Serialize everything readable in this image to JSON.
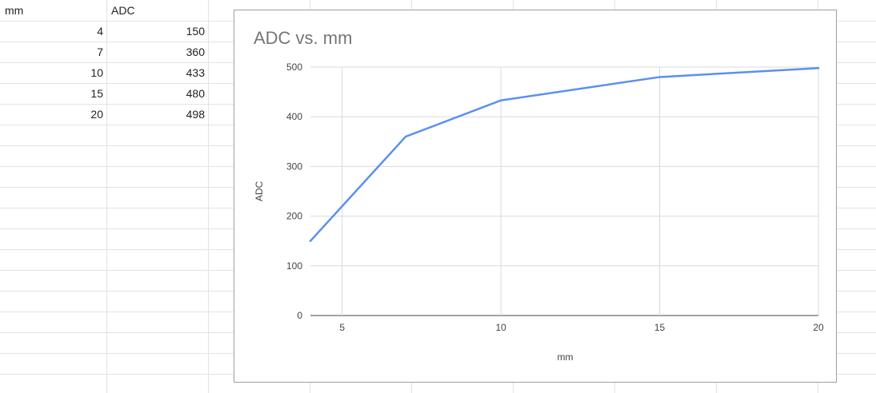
{
  "sheet": {
    "headers": [
      "mm",
      "ADC"
    ],
    "rows": [
      [
        "4",
        "150"
      ],
      [
        "7",
        "360"
      ],
      [
        "10",
        "433"
      ],
      [
        "15",
        "480"
      ],
      [
        "20",
        "498"
      ]
    ]
  },
  "chart_data": {
    "type": "line",
    "title": "ADC vs. mm",
    "xlabel": "mm",
    "ylabel": "ADC",
    "x": [
      4,
      7,
      10,
      15,
      20
    ],
    "series": [
      {
        "values": [
          150,
          360,
          433,
          480,
          498
        ],
        "color": "#5b8ff2"
      }
    ],
    "xlim": [
      4,
      20
    ],
    "ylim": [
      0,
      500
    ],
    "xticks": [
      5,
      10,
      15,
      20
    ],
    "yticks": [
      0,
      100,
      200,
      300,
      400,
      500
    ],
    "grid": true,
    "legend": "none"
  }
}
